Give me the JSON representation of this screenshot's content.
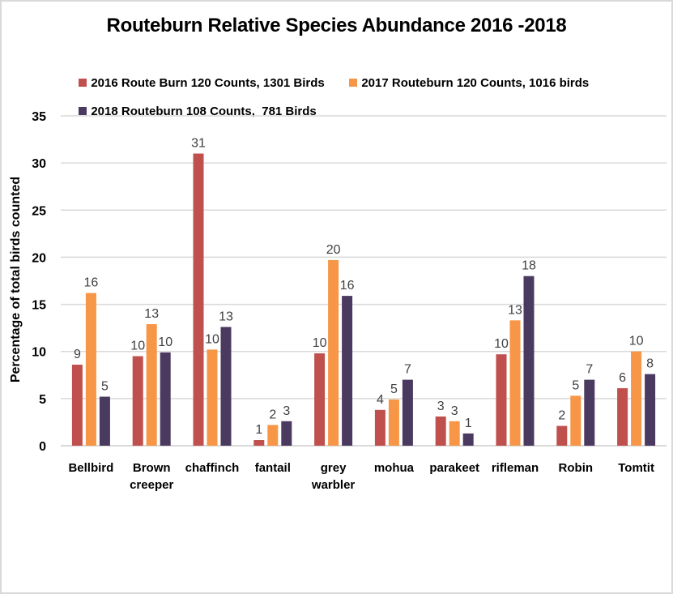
{
  "chart_data": {
    "type": "bar",
    "title": "Routeburn Relative Species Abundance 2016 -2018",
    "xlabel": "",
    "ylabel": "Percentage of total birds counted",
    "ylim": [
      0,
      35
    ],
    "yticks": [
      0,
      5,
      10,
      15,
      20,
      25,
      30,
      35
    ],
    "grid": true,
    "legend_position": "top",
    "categories": [
      "Bellbird",
      "Brown creeper",
      "chaffinch",
      "fantail",
      "grey warbler",
      "mohua",
      "parakeet",
      "rifleman",
      "Robin",
      "Tomtit"
    ],
    "category_label_lines": [
      [
        "Bellbird"
      ],
      [
        "Brown",
        "creeper"
      ],
      [
        "chaffinch"
      ],
      [
        "fantail"
      ],
      [
        "grey",
        "warbler"
      ],
      [
        "mohua"
      ],
      [
        "parakeet"
      ],
      [
        "rifleman"
      ],
      [
        "Robin"
      ],
      [
        "Tomtit"
      ]
    ],
    "series": [
      {
        "name": "2016 Route Burn 120 Counts, 1301 Birds",
        "color": "#C0504D",
        "values": [
          8.6,
          9.5,
          31.0,
          0.6,
          9.8,
          3.8,
          3.1,
          9.7,
          2.1,
          6.1
        ],
        "labels": [
          "9",
          "10",
          "31",
          "1",
          "10",
          "4",
          "3",
          "10",
          "2",
          "6"
        ]
      },
      {
        "name": "2017 Routeburn 120 Counts, 1016 birds",
        "color": "#F79646",
        "values": [
          16.2,
          12.9,
          10.2,
          2.2,
          19.7,
          4.9,
          2.6,
          13.3,
          5.3,
          10.0
        ],
        "labels": [
          "16",
          "13",
          "10",
          "2",
          "20",
          "5",
          "3",
          "13",
          "5",
          "10"
        ]
      },
      {
        "name": "2018 Routeburn 108 Counts,  781 Birds",
        "color": "#4B3A5F",
        "values": [
          5.2,
          9.9,
          12.6,
          2.6,
          15.9,
          7.0,
          1.3,
          18.0,
          7.0,
          7.6
        ],
        "labels": [
          "5",
          "10",
          "13",
          "3",
          "16",
          "7",
          "1",
          "18",
          "7",
          "8"
        ]
      }
    ]
  }
}
